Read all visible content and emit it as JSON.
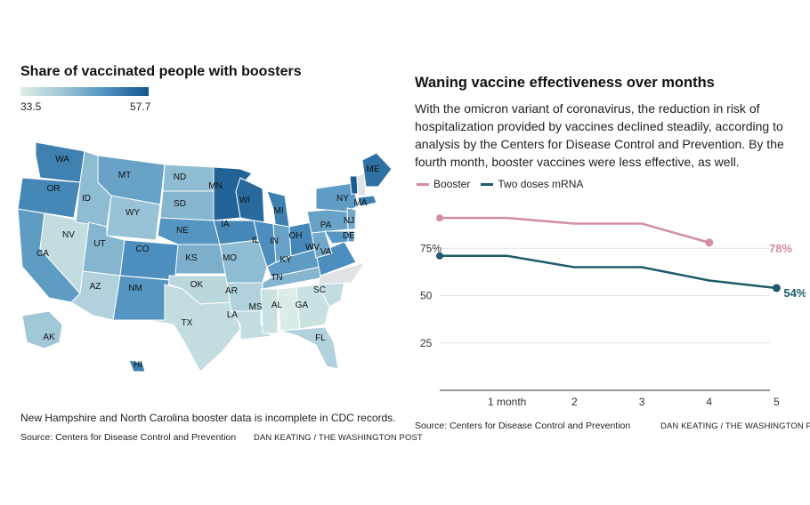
{
  "left": {
    "title": "Share of vaccinated people with boosters",
    "legend": {
      "min": "33.5",
      "max": "57.7",
      "colors": [
        "#dfeee8",
        "#9cc5d6",
        "#4f91bf",
        "#15568c"
      ]
    },
    "states": [
      {
        "abbr": "WA",
        "value": 52
      },
      {
        "abbr": "OR",
        "value": 51
      },
      {
        "abbr": "CA",
        "value": 48
      },
      {
        "abbr": "NV",
        "value": 37
      },
      {
        "abbr": "ID",
        "value": 43
      },
      {
        "abbr": "MT",
        "value": 47
      },
      {
        "abbr": "WY",
        "value": 42
      },
      {
        "abbr": "UT",
        "value": 44
      },
      {
        "abbr": "AZ",
        "value": 39
      },
      {
        "abbr": "CO",
        "value": 50
      },
      {
        "abbr": "NM",
        "value": 49
      },
      {
        "abbr": "ND",
        "value": 43
      },
      {
        "abbr": "SD",
        "value": 44
      },
      {
        "abbr": "NE",
        "value": 49
      },
      {
        "abbr": "KS",
        "value": 45
      },
      {
        "abbr": "OK",
        "value": 38
      },
      {
        "abbr": "TX",
        "value": 37
      },
      {
        "abbr": "MN",
        "value": 56
      },
      {
        "abbr": "IA",
        "value": 51
      },
      {
        "abbr": "MO",
        "value": 43
      },
      {
        "abbr": "AR",
        "value": 39
      },
      {
        "abbr": "LA",
        "value": 37
      },
      {
        "abbr": "WI",
        "value": 55
      },
      {
        "abbr": "IL",
        "value": 50
      },
      {
        "abbr": "MI",
        "value": 52
      },
      {
        "abbr": "IN",
        "value": 47
      },
      {
        "abbr": "OH",
        "value": 51
      },
      {
        "abbr": "KY",
        "value": 48
      },
      {
        "abbr": "TN",
        "value": 44
      },
      {
        "abbr": "MS",
        "value": 36
      },
      {
        "abbr": "AL",
        "value": 34
      },
      {
        "abbr": "GA",
        "value": 36
      },
      {
        "abbr": "FL",
        "value": 39
      },
      {
        "abbr": "SC",
        "value": 37
      },
      {
        "abbr": "WV",
        "value": 46
      },
      {
        "abbr": "VA",
        "value": 50
      },
      {
        "abbr": "PA",
        "value": 47
      },
      {
        "abbr": "NY",
        "value": 48
      },
      {
        "abbr": "NJ",
        "value": 46
      },
      {
        "abbr": "DE",
        "value": 48
      },
      {
        "abbr": "MD",
        "value": 49
      },
      {
        "abbr": "MA",
        "value": 52
      },
      {
        "abbr": "VT",
        "value": 57
      },
      {
        "abbr": "ME",
        "value": 54
      },
      {
        "abbr": "AK",
        "value": 41
      },
      {
        "abbr": "HI",
        "value": 52
      }
    ],
    "note": "New Hampshire and North Carolina booster data is incomplete in CDC records.",
    "source": "Source: Centers for Disease Control and Prevention",
    "credit": "DAN KEATING / THE WASHINGTON POST"
  },
  "right": {
    "title": "Waning vaccine effectiveness over months",
    "description": "With the omicron variant of coronavirus, the reduction in risk of hospitalization provided by vaccines declined steadily, according to analysis by the Centers for Disease Control and Prevention. By the fourth month, booster vaccines were less effective, as well.",
    "source": "Source: Centers for Disease Control and Prevention",
    "credit": "DAN KEATING / THE WASHINGTON POST"
  },
  "chart_data": {
    "type": "line",
    "title": "Waning vaccine effectiveness over months",
    "x": [
      0,
      1,
      2,
      3,
      4,
      5
    ],
    "x_tick_labels": [
      "",
      "1 month",
      "2",
      "3",
      "4",
      "5"
    ],
    "y_ticks": [
      25,
      50,
      75
    ],
    "y_tick_labels": [
      "25",
      "50",
      "75%"
    ],
    "ylim": [
      0,
      100
    ],
    "xlim": [
      0,
      5.1
    ],
    "grid": true,
    "legend_position": "top-left",
    "series": [
      {
        "name": "Booster",
        "color": "#d38d9e",
        "x": [
          0,
          1,
          2,
          3,
          4
        ],
        "values": [
          91,
          91,
          88,
          88,
          78
        ],
        "end_label": "78%",
        "end_label_color": "#d38d9e"
      },
      {
        "name": "Two doses mRNA",
        "color": "#1f5b69",
        "x": [
          0,
          1,
          2,
          3,
          4,
          5
        ],
        "values": [
          71,
          71,
          65,
          65,
          58,
          54
        ],
        "end_label": "54%",
        "end_label_color": "#1f5b69"
      }
    ]
  }
}
